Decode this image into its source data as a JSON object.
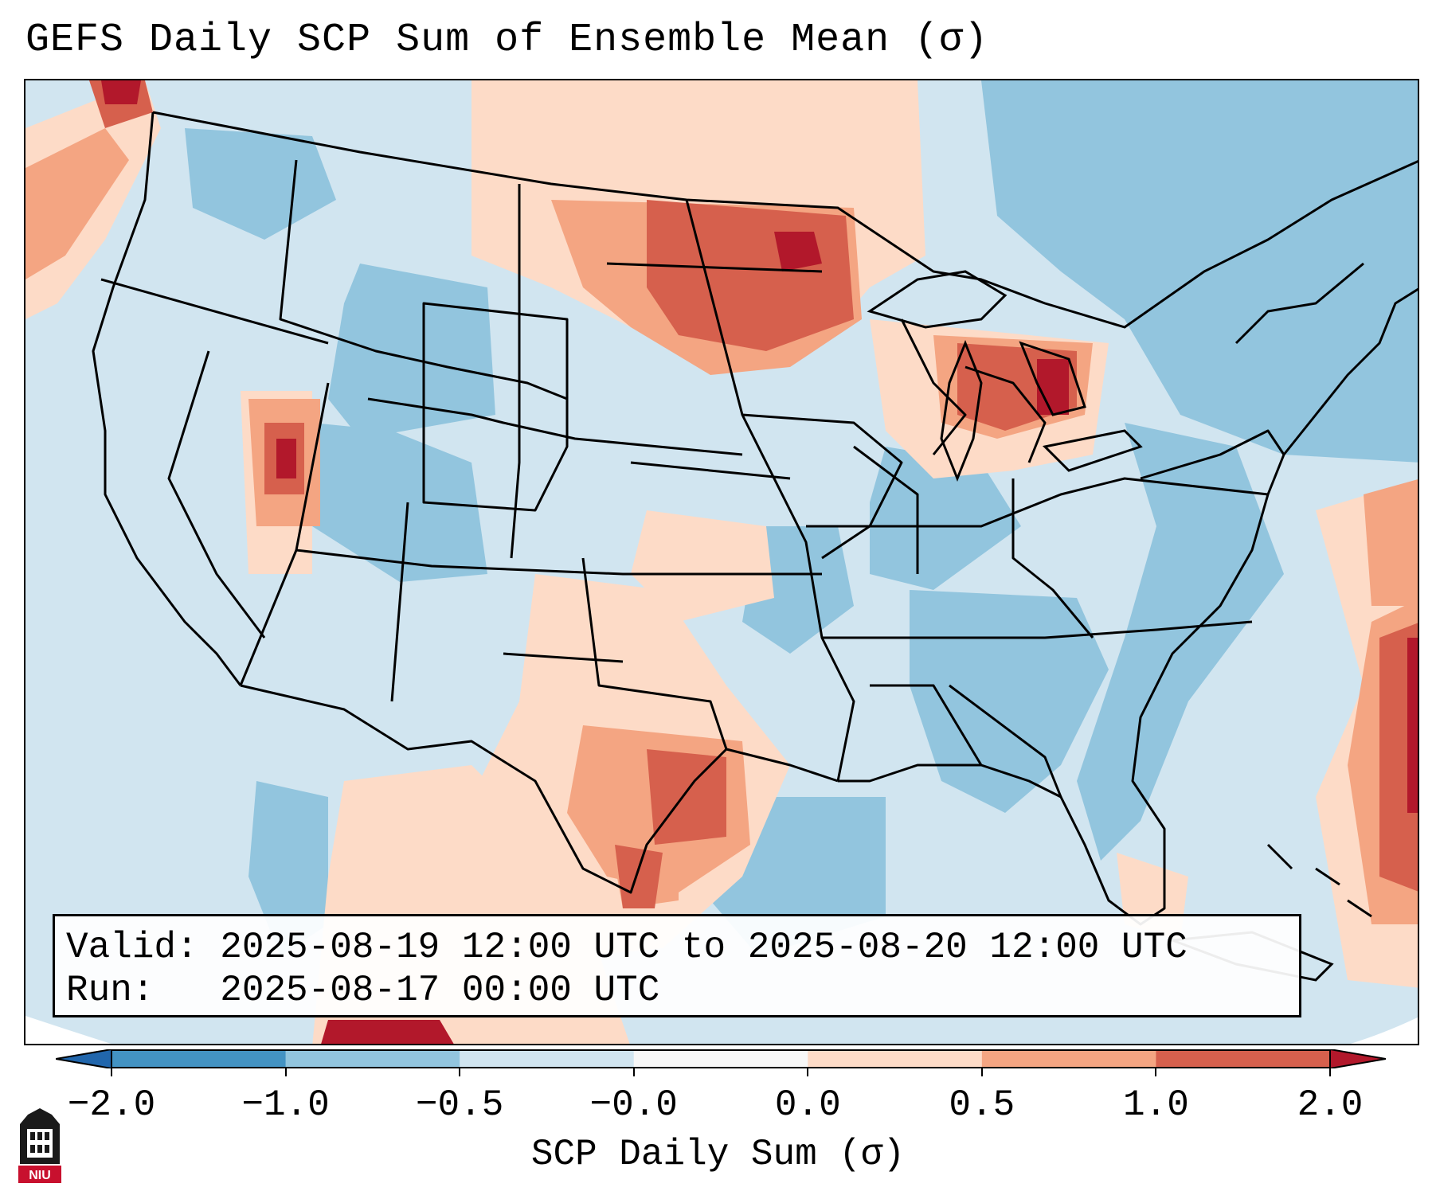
{
  "title": "GEFS Daily SCP Sum of Ensemble Mean (σ)",
  "info": {
    "valid_line": "Valid: 2025-08-19 12:00 UTC to 2025-08-20 12:00 UTC",
    "run_line": "Run:   2025-08-17 00:00 UTC"
  },
  "colorbar": {
    "label": "SCP Daily Sum (σ)",
    "ticks": [
      "−2.0",
      "−1.0",
      "−0.5",
      "−0.0",
      "0.0",
      "0.5",
      "1.0",
      "2.0"
    ],
    "colors": [
      "#4393c3",
      "#92c5de",
      "#d1e5f0",
      "#f7f7f7",
      "#fddbc7",
      "#f4a582",
      "#d6604d",
      "#b2182b"
    ],
    "under_color": "#2166ac",
    "over_color": "#b2182b"
  },
  "map": {
    "field_levels": {
      "neg_mid": "#92c5de",
      "neg_low": "#d1e5f0",
      "pos_low": "#fddbc7",
      "pos_mid": "#f4a582",
      "pos_high": "#d6604d",
      "pos_max": "#b2182b"
    }
  },
  "logo": {
    "text": "NIU",
    "color": "#c8102e"
  }
}
